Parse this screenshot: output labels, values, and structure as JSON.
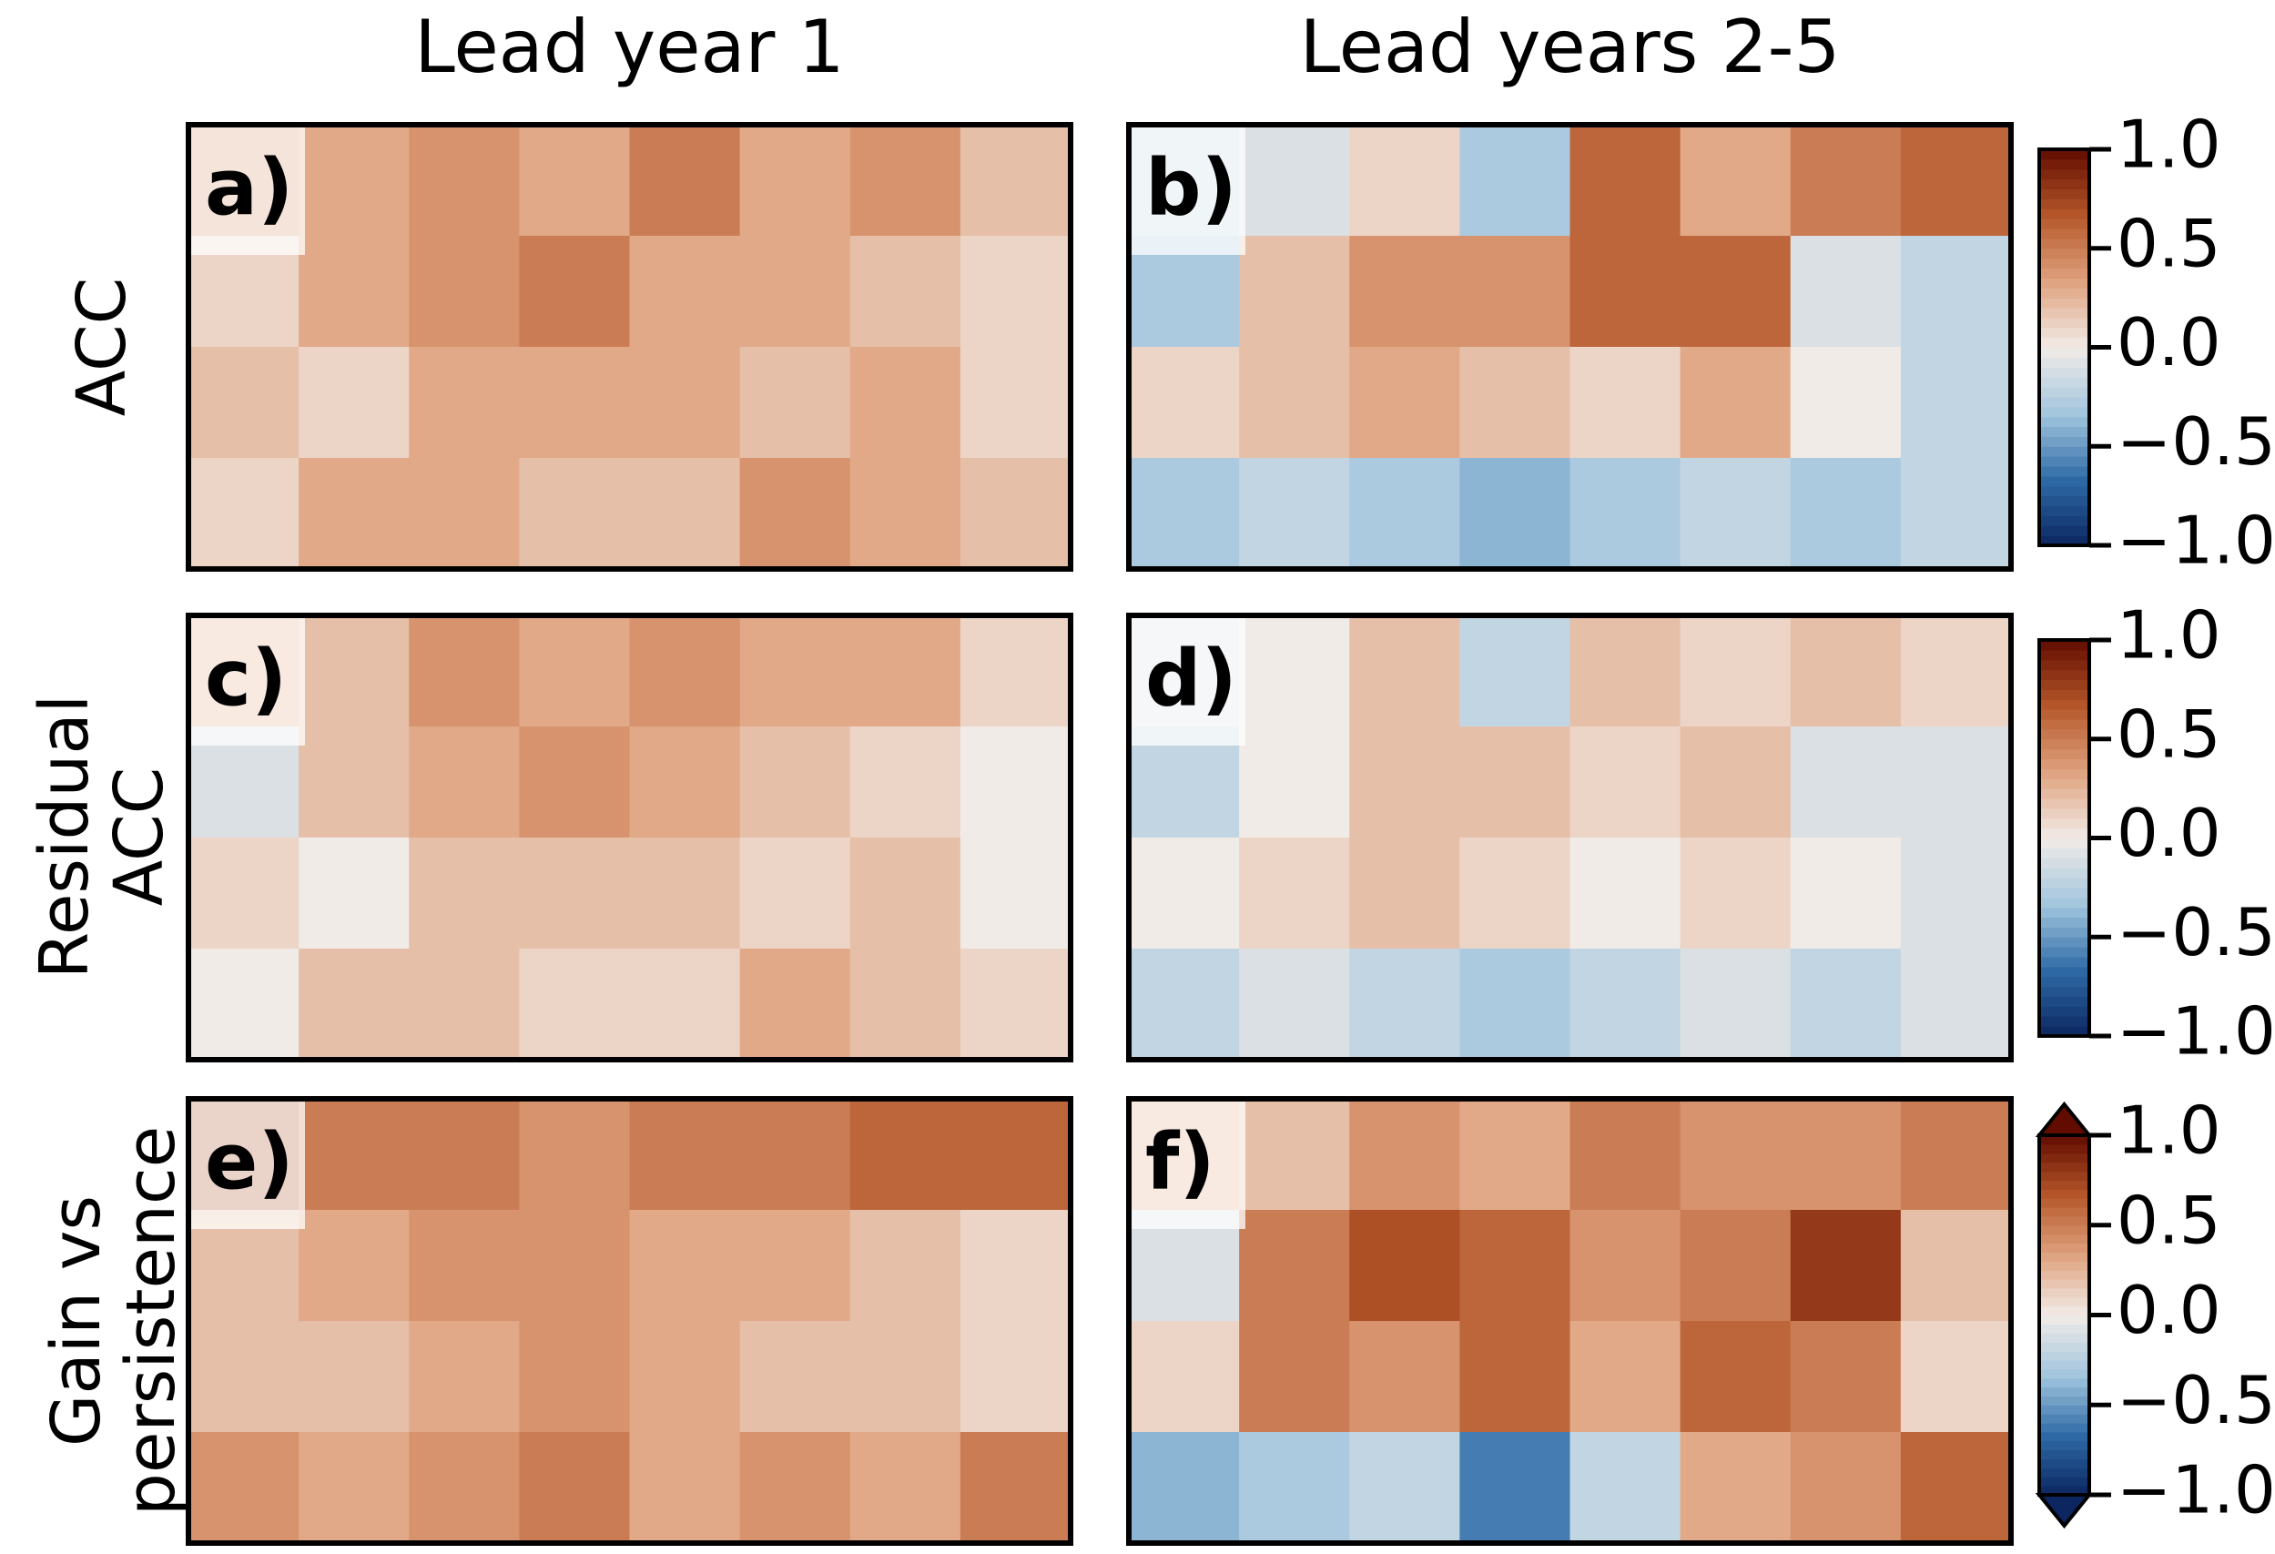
{
  "column_titles": [
    "Lead year 1",
    "Lead years 2-5"
  ],
  "row_labels": [
    "ACC",
    "Residual ACC",
    "Gain vs persistence"
  ],
  "chart_data": [
    {
      "type": "heatmap",
      "title": "a)",
      "vlim": [
        -1,
        1
      ],
      "colormap": [
        "#0b2660",
        "#2e6aa6",
        "#a3c6de",
        "#f1ebe7",
        "#dfa27e",
        "#b5572a",
        "#620c00"
      ],
      "values": [
        [
          0.4,
          0.3,
          0.4,
          0.3,
          0.5,
          0.3,
          0.4,
          0.2
        ],
        [
          0.1,
          0.3,
          0.4,
          0.5,
          0.3,
          0.3,
          0.2,
          0.1
        ],
        [
          0.2,
          0.1,
          0.3,
          0.3,
          0.3,
          0.2,
          0.3,
          0.1
        ],
        [
          0.1,
          0.3,
          0.3,
          0.2,
          0.2,
          0.4,
          0.3,
          0.2
        ]
      ]
    },
    {
      "type": "heatmap",
      "title": "b)",
      "vlim": [
        -1,
        1
      ],
      "colormap": [
        "#0b2660",
        "#2e6aa6",
        "#a3c6de",
        "#f1ebe7",
        "#dfa27e",
        "#b5572a",
        "#620c00"
      ],
      "values": [
        [
          -0.2,
          -0.1,
          0.1,
          -0.3,
          0.6,
          0.3,
          0.5,
          0.6
        ],
        [
          -0.3,
          0.2,
          0.4,
          0.4,
          0.6,
          0.6,
          -0.1,
          -0.2
        ],
        [
          0.1,
          0.2,
          0.3,
          0.2,
          0.1,
          0.3,
          0.0,
          -0.2
        ],
        [
          -0.3,
          -0.2,
          -0.3,
          -0.4,
          -0.3,
          -0.2,
          -0.3,
          -0.2
        ]
      ],
      "colorbar_ticks": [
        {
          "value": 1,
          "label": "1.0"
        },
        0.5,
        {
          "value": 0,
          "label": "0.0"
        },
        {
          "value": -0.5,
          "label": "−0.5"
        },
        {
          "value": -1,
          "label": "−1.0"
        }
      ]
    },
    {
      "type": "heatmap",
      "title": "c)",
      "vlim": [
        -1,
        1
      ],
      "colormap": [
        "#0b2660",
        "#2e6aa6",
        "#a3c6de",
        "#f1ebe7",
        "#dfa27e",
        "#b5572a",
        "#620c00"
      ],
      "values": [
        [
          0.3,
          0.2,
          0.4,
          0.3,
          0.4,
          0.3,
          0.3,
          0.1
        ],
        [
          -0.1,
          0.2,
          0.3,
          0.4,
          0.3,
          0.2,
          0.1,
          0.0
        ],
        [
          0.1,
          0.0,
          0.2,
          0.2,
          0.2,
          0.1,
          0.2,
          0.0
        ],
        [
          0.0,
          0.2,
          0.2,
          0.1,
          0.1,
          0.3,
          0.2,
          0.1
        ]
      ]
    },
    {
      "type": "heatmap",
      "title": "d)",
      "vlim": [
        -1,
        1
      ],
      "colormap": [
        "#0b2660",
        "#2e6aa6",
        "#a3c6de",
        "#f1ebe7",
        "#dfa27e",
        "#b5572a",
        "#620c00"
      ],
      "values": [
        [
          -0.1,
          0.0,
          0.2,
          -0.2,
          0.2,
          0.1,
          0.2,
          0.1
        ],
        [
          -0.2,
          0.0,
          0.2,
          0.2,
          0.1,
          0.2,
          -0.1,
          -0.1
        ],
        [
          0.0,
          0.1,
          0.2,
          0.1,
          0.0,
          0.1,
          0.0,
          -0.1
        ],
        [
          -0.2,
          -0.1,
          -0.2,
          -0.3,
          -0.2,
          -0.1,
          -0.2,
          -0.1
        ]
      ],
      "colorbar_ticks": [
        {
          "value": 1,
          "label": "1.0"
        },
        0.5,
        {
          "value": 0,
          "label": "0.0"
        },
        {
          "value": -0.5,
          "label": "−0.5"
        },
        {
          "value": -1,
          "label": "−1.0"
        }
      ]
    },
    {
      "type": "heatmap",
      "title": "e)",
      "vlim": [
        -1,
        1
      ],
      "colormap": [
        "#0b2660",
        "#2e6aa6",
        "#a3c6de",
        "#f1ebe7",
        "#dfa27e",
        "#b5572a",
        "#620c00"
      ],
      "values": [
        [
          0.7,
          0.5,
          0.5,
          0.4,
          0.5,
          0.5,
          0.6,
          0.6
        ],
        [
          0.2,
          0.3,
          0.4,
          0.4,
          0.3,
          0.3,
          0.2,
          0.1
        ],
        [
          0.2,
          0.2,
          0.3,
          0.4,
          0.3,
          0.2,
          0.2,
          0.1
        ],
        [
          0.4,
          0.3,
          0.4,
          0.5,
          0.3,
          0.4,
          0.3,
          0.5
        ]
      ]
    },
    {
      "type": "heatmap",
      "title": "f)",
      "vlim": [
        -1,
        1
      ],
      "colormap": [
        "#0b2660",
        "#2e6aa6",
        "#a3c6de",
        "#f1ebe7",
        "#dfa27e",
        "#b5572a",
        "#620c00"
      ],
      "values": [
        [
          0.3,
          0.2,
          0.4,
          0.3,
          0.5,
          0.4,
          0.4,
          0.5
        ],
        [
          -0.1,
          0.5,
          0.7,
          0.6,
          0.4,
          0.5,
          0.8,
          0.2
        ],
        [
          0.1,
          0.5,
          0.4,
          0.6,
          0.3,
          0.6,
          0.5,
          0.1
        ],
        [
          -0.4,
          -0.3,
          -0.2,
          -0.6,
          -0.2,
          0.3,
          0.4,
          0.6
        ]
      ],
      "colorbar_ticks": [
        {
          "value": 1,
          "label": "1.0"
        },
        0.5,
        {
          "value": 0,
          "label": "0.0"
        },
        {
          "value": -0.5,
          "label": "−0.5"
        },
        {
          "value": -1,
          "label": "−1.0"
        }
      ],
      "colorbar_extend": "both"
    }
  ]
}
